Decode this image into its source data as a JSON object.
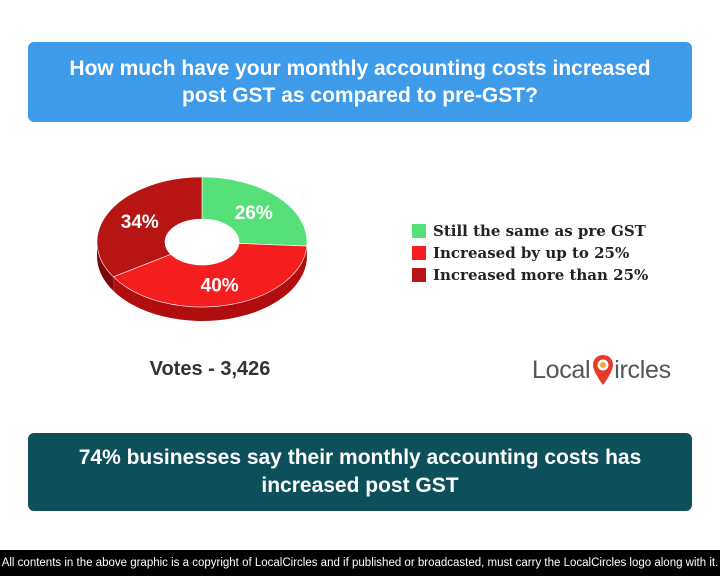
{
  "question": "How much have your monthly accounting costs increased post GST as compared to pre-GST?",
  "votes_label": "Votes - 3,426",
  "conclusion": "74% businesses say their monthly accounting costs has increased post GST",
  "footer": "All contents in the above graphic is a copyright of LocalCircles and if published or broadcasted, must carry the LocalCircles logo along with it.",
  "logo": {
    "part1": "Local",
    "part2": "ircles",
    "pin_icon": "map-pin-icon",
    "accent": "#e8392b"
  },
  "chart_data": {
    "type": "pie",
    "donut": true,
    "title": "",
    "legend_position": "right",
    "series": [
      {
        "name": "Still the same as pre GST",
        "value": 26,
        "label": "26%",
        "color": "#56e07a",
        "side": "#2fa54f"
      },
      {
        "name": "Increased by up to 25%",
        "value": 40,
        "label": "40%",
        "color": "#f51d1d",
        "side": "#b00e0e"
      },
      {
        "name": "Increased more than 25%",
        "value": 34,
        "label": "34%",
        "color": "#b71414",
        "side": "#7a0808"
      }
    ]
  },
  "colors": {
    "question_bg": "#3d9be9",
    "conclusion_bg": "#0e4f5c",
    "footer_bg": "#000000"
  }
}
